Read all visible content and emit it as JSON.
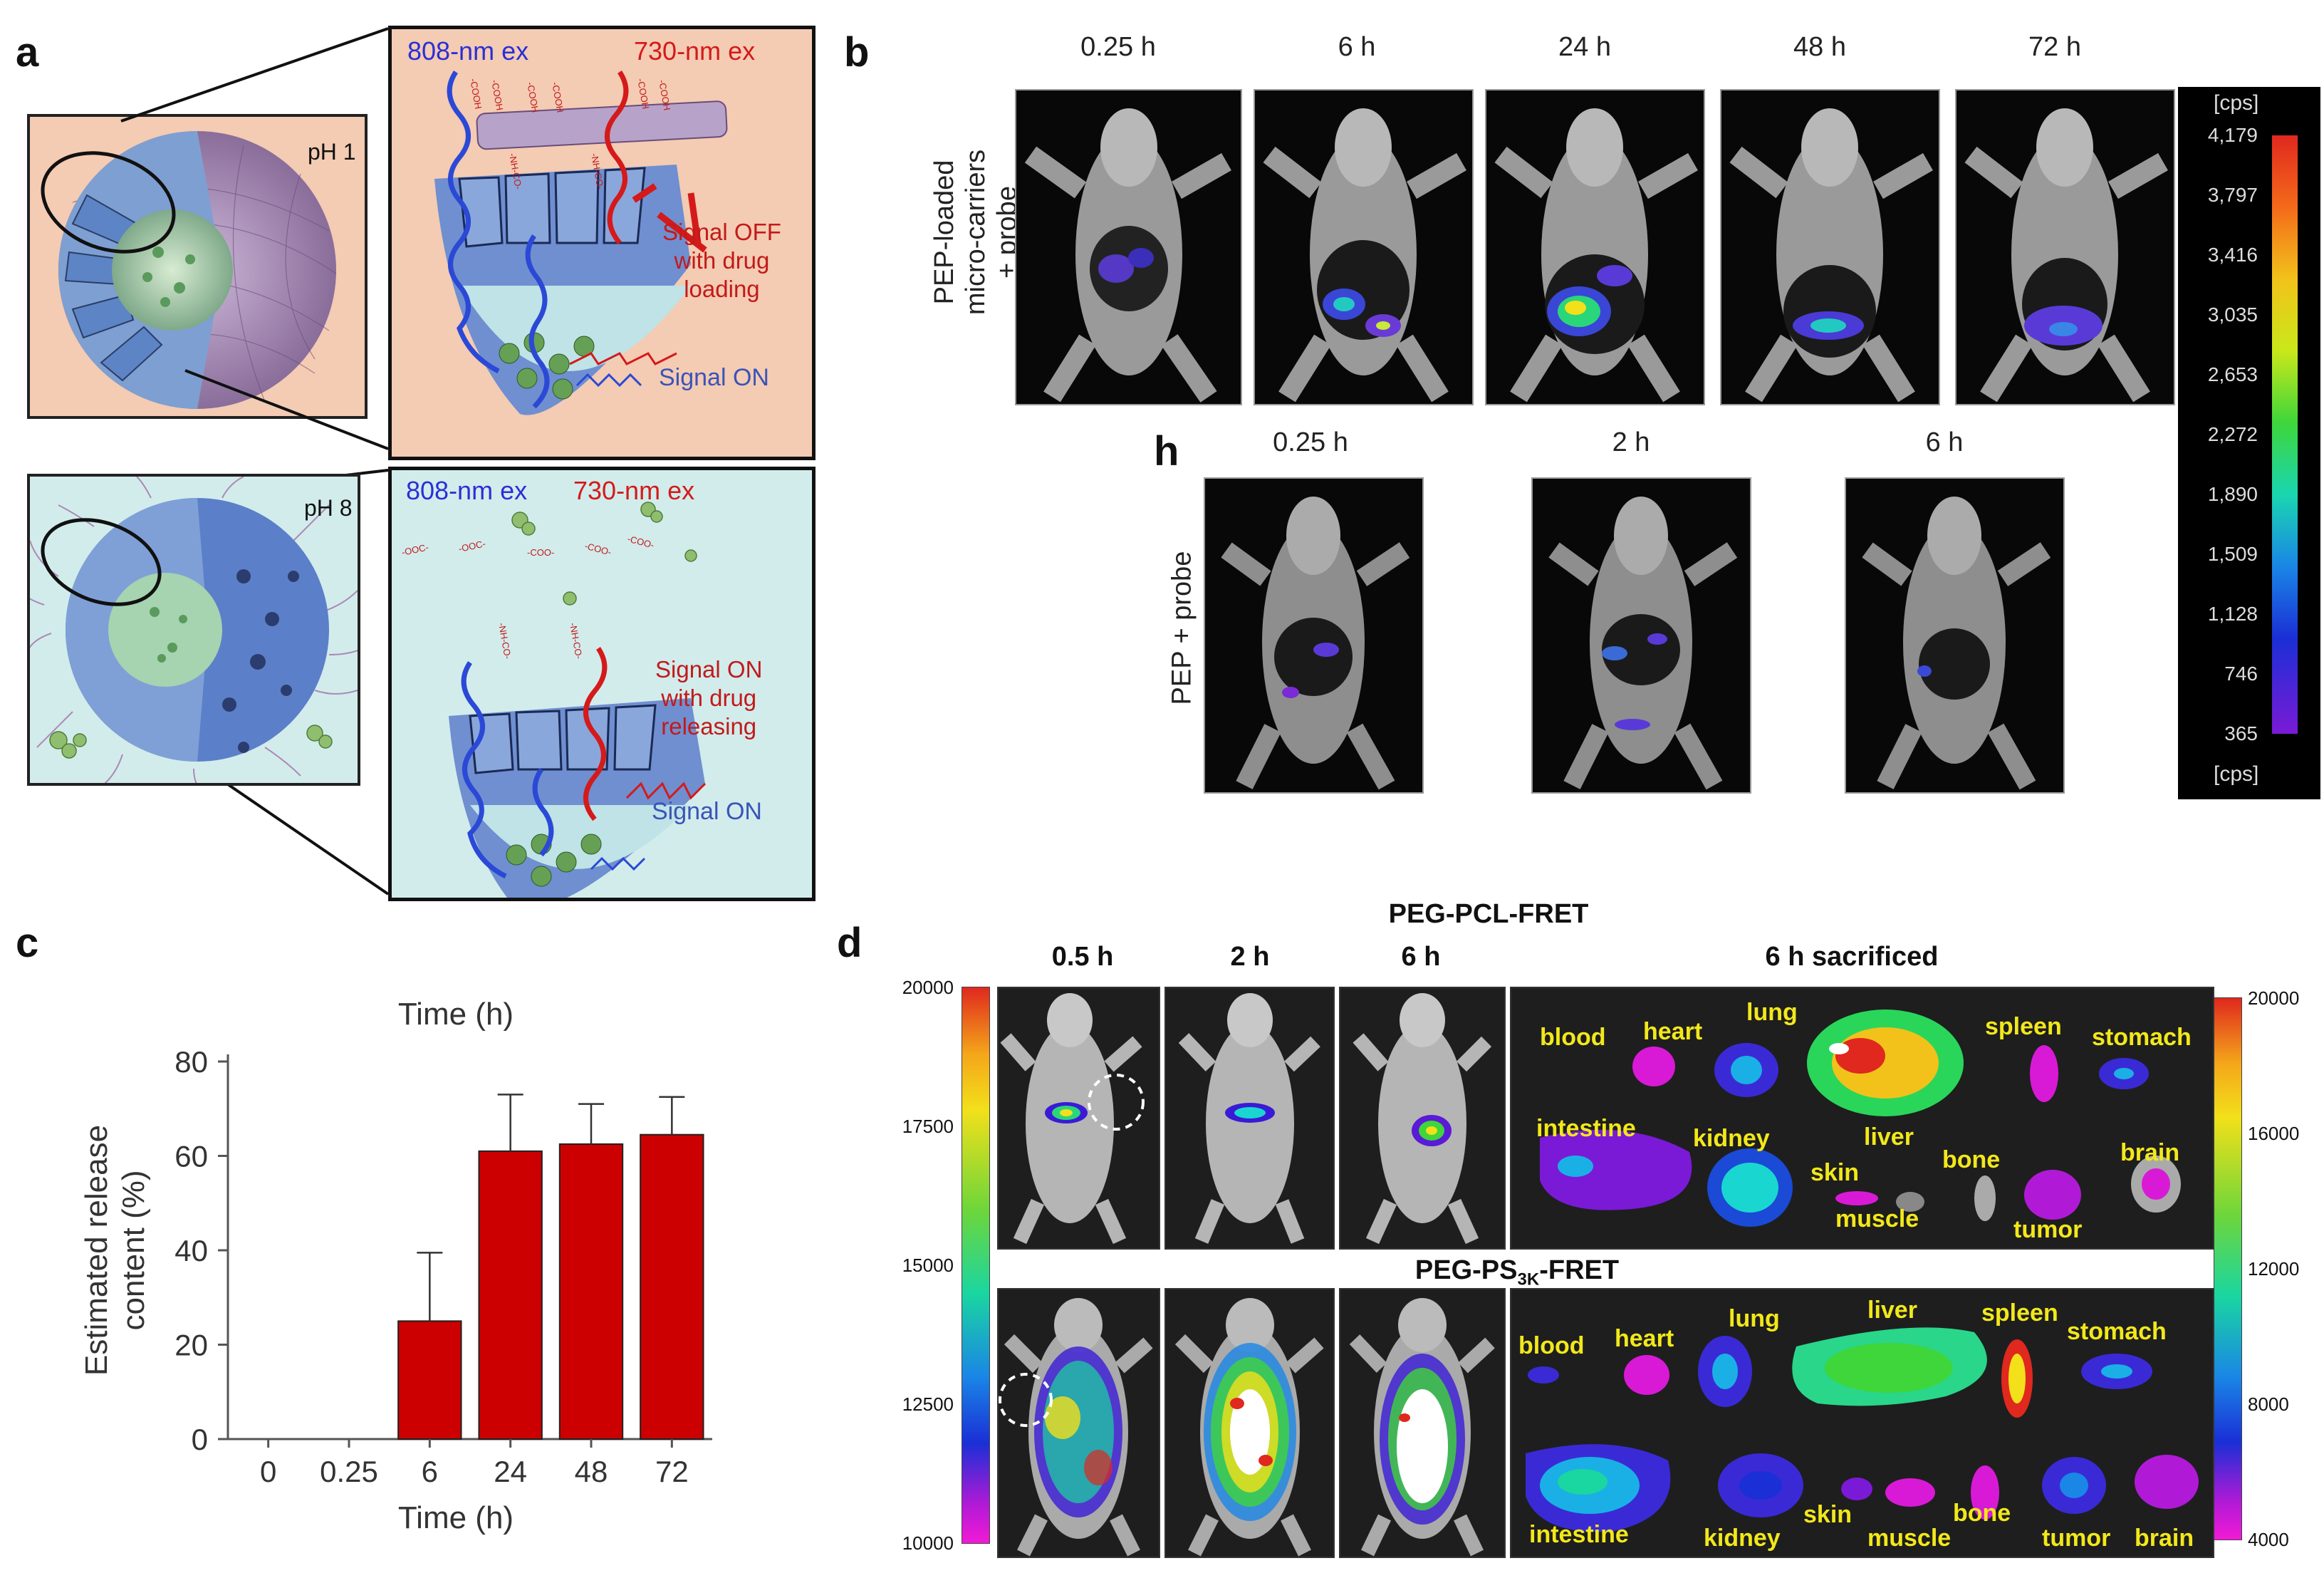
{
  "panels": {
    "a": "a",
    "b": "b",
    "h": "h",
    "c": "c",
    "d": "d"
  },
  "panel_a": {
    "ph_top": "pH 1",
    "ph_bottom": "pH 8",
    "ex808": "808-nm ex",
    "ex730": "730-nm ex",
    "top_signal_off": [
      "Signal OFF",
      "with drug",
      "loading"
    ],
    "top_signal_on": "Signal ON",
    "bottom_signal_on_release": [
      "Signal ON",
      "with drug",
      "releasing"
    ],
    "bottom_signal_on": "Signal ON",
    "top_chain_labels": [
      "-COOH",
      "-COOH",
      "-NH-CO-",
      "-COOH",
      "-COOH",
      "-NH-CO-",
      "-COOH",
      "-COOH"
    ],
    "bottom_chain_labels": [
      "-OOC-",
      "-OOC-",
      "-COO-",
      "-COO-",
      "-COO-",
      "-NH-CO-",
      "-NH-CO-"
    ]
  },
  "panel_b": {
    "times": [
      "0.25 h",
      "6 h",
      "24 h",
      "48 h",
      "72 h"
    ],
    "row_label": [
      "PEP-loaded",
      "micro-carriers",
      "+ probe"
    ]
  },
  "panel_h": {
    "times": [
      "0.25 h",
      "2 h",
      "6 h"
    ],
    "row_label": "PEP + probe"
  },
  "colorbar_b": {
    "unit_top": "[cps]",
    "unit_bottom": "[cps]",
    "ticks": [
      "4,179",
      "3,797",
      "3,416",
      "3,035",
      "2,653",
      "2,272",
      "1,890",
      "1,509",
      "1,128",
      "746",
      "365"
    ]
  },
  "panel_d": {
    "title_top": "PEG-PCL-FRET",
    "title_bottom_main": "PEG-PS",
    "title_bottom_sub": "3K",
    "title_bottom_end": "-FRET",
    "times": [
      "0.5 h",
      "2 h",
      "6 h"
    ],
    "sacrificed": "6 h sacrificed",
    "left_ticks": [
      "20000",
      "17500",
      "15000",
      "12500",
      "10000"
    ],
    "right_ticks": [
      "20000",
      "16000",
      "12000",
      "8000",
      "4000"
    ],
    "organs_top": [
      "blood",
      "heart",
      "lung",
      "liver",
      "spleen",
      "stomach",
      "intestine",
      "kidney",
      "skin",
      "bone",
      "brain",
      "muscle",
      "tumor"
    ],
    "organs_bottom": [
      "blood",
      "heart",
      "lung",
      "liver",
      "spleen",
      "stomach",
      "intestine",
      "kidney",
      "skin",
      "bone",
      "muscle",
      "tumor",
      "brain"
    ]
  },
  "chart_data": {
    "type": "bar",
    "title": "Time (h)",
    "xlabel": "Time (h)",
    "ylabel": "Estimated release content (%)",
    "ylabel_lines": [
      "Estimated release",
      "content (%)"
    ],
    "categories": [
      "0",
      "0.25",
      "6",
      "24",
      "48",
      "72"
    ],
    "values": [
      0,
      0,
      25,
      61,
      62.5,
      64.5
    ],
    "errors": [
      0,
      0,
      14.5,
      12,
      8.5,
      8
    ],
    "ylim": [
      0,
      80
    ],
    "yticks": [
      "0",
      "20",
      "40",
      "60",
      "80"
    ],
    "bar_color": "#cc0000"
  }
}
